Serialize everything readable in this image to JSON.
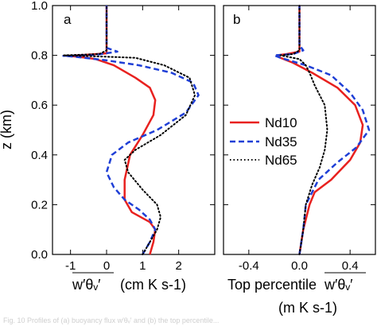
{
  "chart_data": [
    {
      "type": "line",
      "panel_label": "a",
      "xlabel": "w′θᵥ′",
      "xunit": "(cm K s-1)",
      "ylabel": "z (km)",
      "xlim": [
        -1.5,
        3.0
      ],
      "ylim": [
        0,
        1.0
      ],
      "xticks": [
        -1,
        0,
        1,
        2
      ],
      "xtick_labels": [
        "-1",
        "0",
        "1",
        "2"
      ],
      "yticks": [
        0,
        0.2,
        0.4,
        0.6,
        0.8,
        1.0
      ],
      "ytick_labels": [
        "0.0",
        "0.2",
        "0.4",
        "0.6",
        "0.8",
        "1.0"
      ],
      "series": [
        {
          "name": "Nd10",
          "color": "#e8211f",
          "style": "solid",
          "points": [
            [
              1.2,
              0.0
            ],
            [
              1.3,
              0.05
            ],
            [
              1.35,
              0.1
            ],
            [
              1.2,
              0.13
            ],
            [
              0.7,
              0.17
            ],
            [
              0.5,
              0.22
            ],
            [
              0.5,
              0.3
            ],
            [
              0.65,
              0.4
            ],
            [
              1.0,
              0.48
            ],
            [
              1.3,
              0.56
            ],
            [
              1.35,
              0.62
            ],
            [
              1.2,
              0.67
            ],
            [
              0.8,
              0.71
            ],
            [
              0.2,
              0.76
            ],
            [
              -0.3,
              0.785
            ],
            [
              -0.8,
              0.795
            ],
            [
              -1.1,
              0.798
            ],
            [
              -0.6,
              0.802
            ],
            [
              0.0,
              0.808
            ],
            [
              0.0,
              0.85
            ],
            [
              0.0,
              0.95
            ],
            [
              0.0,
              1.0
            ]
          ]
        },
        {
          "name": "Nd35",
          "color": "#1f3fd6",
          "style": "dashed",
          "points": [
            [
              1.0,
              0.0
            ],
            [
              1.2,
              0.05
            ],
            [
              1.35,
              0.1
            ],
            [
              1.2,
              0.14
            ],
            [
              0.9,
              0.18
            ],
            [
              0.5,
              0.22
            ],
            [
              0.2,
              0.27
            ],
            [
              0.0,
              0.33
            ],
            [
              0.15,
              0.4
            ],
            [
              0.6,
              0.45
            ],
            [
              1.4,
              0.5
            ],
            [
              2.2,
              0.57
            ],
            [
              2.55,
              0.64
            ],
            [
              2.4,
              0.69
            ],
            [
              1.8,
              0.73
            ],
            [
              0.9,
              0.76
            ],
            [
              0.0,
              0.78
            ],
            [
              -0.9,
              0.795
            ],
            [
              -1.2,
              0.798
            ],
            [
              -0.3,
              0.802
            ],
            [
              0.3,
              0.815
            ],
            [
              0.0,
              0.83
            ],
            [
              0.0,
              0.9
            ],
            [
              0.0,
              1.0
            ]
          ]
        },
        {
          "name": "Nd65",
          "color": "#000000",
          "style": "dotted",
          "points": [
            [
              1.0,
              0.0
            ],
            [
              1.2,
              0.05
            ],
            [
              1.4,
              0.1
            ],
            [
              1.5,
              0.15
            ],
            [
              1.4,
              0.2
            ],
            [
              1.0,
              0.26
            ],
            [
              0.6,
              0.33
            ],
            [
              0.5,
              0.38
            ],
            [
              0.8,
              0.42
            ],
            [
              1.5,
              0.48
            ],
            [
              2.2,
              0.56
            ],
            [
              2.45,
              0.64
            ],
            [
              2.3,
              0.71
            ],
            [
              1.6,
              0.76
            ],
            [
              0.8,
              0.79
            ],
            [
              -0.5,
              0.797
            ],
            [
              -1.2,
              0.8
            ],
            [
              -0.2,
              0.805
            ],
            [
              0.0,
              0.82
            ],
            [
              0.0,
              0.9
            ],
            [
              0.0,
              1.0
            ]
          ]
        }
      ]
    },
    {
      "type": "line",
      "panel_label": "b",
      "xlabel_prefix": "Top percentile",
      "xlabel": "w′θᵥ′",
      "xunit": "(m K s-1)",
      "xlim": [
        -0.6,
        0.6
      ],
      "ylim": [
        0,
        1.0
      ],
      "xticks": [
        -0.4,
        0.0,
        0.4
      ],
      "xtick_labels": [
        "-0.4",
        "0.0",
        "0.4"
      ],
      "yticks": [
        0,
        0.2,
        0.4,
        0.6,
        0.8,
        1.0
      ],
      "legend": {
        "position": "center-right",
        "entries": [
          "Nd10",
          "Nd35",
          "Nd65"
        ]
      },
      "series": [
        {
          "name": "Nd10",
          "color": "#e8211f",
          "style": "solid",
          "points": [
            [
              0.0,
              0.0
            ],
            [
              0.03,
              0.1
            ],
            [
              0.08,
              0.2
            ],
            [
              0.12,
              0.25
            ],
            [
              0.25,
              0.3
            ],
            [
              0.4,
              0.38
            ],
            [
              0.48,
              0.45
            ],
            [
              0.5,
              0.52
            ],
            [
              0.44,
              0.6
            ],
            [
              0.3,
              0.67
            ],
            [
              0.1,
              0.73
            ],
            [
              -0.05,
              0.77
            ],
            [
              -0.15,
              0.79
            ],
            [
              -0.18,
              0.8
            ],
            [
              -0.1,
              0.805
            ],
            [
              0.0,
              0.815
            ],
            [
              0.0,
              0.9
            ],
            [
              0.0,
              1.0
            ]
          ]
        },
        {
          "name": "Nd35",
          "color": "#1f3fd6",
          "style": "dashed",
          "points": [
            [
              0.0,
              0.0
            ],
            [
              0.03,
              0.1
            ],
            [
              0.05,
              0.2
            ],
            [
              0.15,
              0.3
            ],
            [
              0.3,
              0.37
            ],
            [
              0.45,
              0.43
            ],
            [
              0.55,
              0.5
            ],
            [
              0.5,
              0.58
            ],
            [
              0.4,
              0.65
            ],
            [
              0.25,
              0.72
            ],
            [
              0.05,
              0.76
            ],
            [
              -0.15,
              0.79
            ],
            [
              -0.2,
              0.8
            ],
            [
              -0.05,
              0.805
            ],
            [
              0.03,
              0.82
            ],
            [
              0.0,
              0.84
            ],
            [
              0.0,
              0.9
            ],
            [
              0.0,
              1.0
            ]
          ]
        },
        {
          "name": "Nd65",
          "color": "#000000",
          "style": "dotted",
          "points": [
            [
              0.0,
              0.0
            ],
            [
              0.03,
              0.1
            ],
            [
              0.05,
              0.2
            ],
            [
              0.1,
              0.28
            ],
            [
              0.16,
              0.35
            ],
            [
              0.2,
              0.42
            ],
            [
              0.22,
              0.5
            ],
            [
              0.2,
              0.6
            ],
            [
              0.12,
              0.68
            ],
            [
              0.08,
              0.73
            ],
            [
              0.05,
              0.76
            ],
            [
              0.0,
              0.785
            ],
            [
              -0.1,
              0.795
            ],
            [
              -0.15,
              0.8
            ],
            [
              -0.05,
              0.805
            ],
            [
              0.0,
              0.82
            ],
            [
              0.0,
              0.9
            ],
            [
              0.0,
              1.0
            ]
          ]
        }
      ]
    }
  ],
  "caption_fragment": "Fig. 10 Profiles of (a) buoyancy flux w′θᵥ′ and (b) the top percentile..."
}
